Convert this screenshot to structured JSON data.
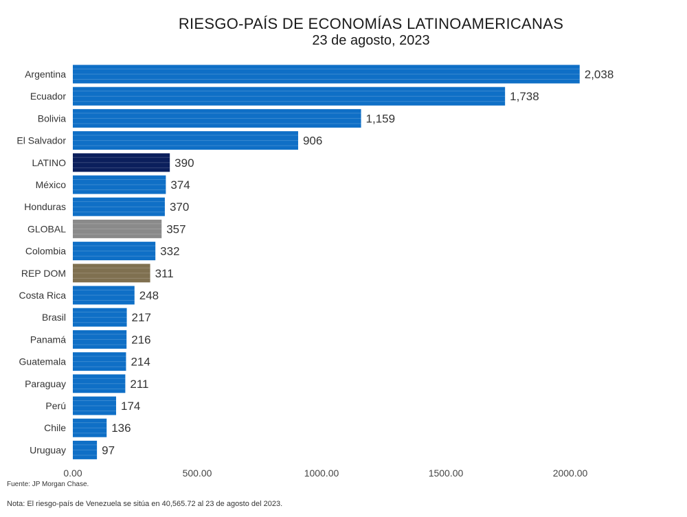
{
  "chart_data": {
    "type": "bar",
    "orientation": "horizontal",
    "title": "RIESGO-PAÍS DE ECONOMÍAS LATINOAMERICANAS",
    "subtitle": "23 de agosto, 2023",
    "categories": [
      "Argentina",
      "Ecuador",
      "Bolivia",
      "El Salvador",
      "LATINO",
      "México",
      "Honduras",
      "GLOBAL",
      "Colombia",
      "REP DOM",
      "Costa Rica",
      "Brasil",
      "Panamá",
      "Guatemala",
      "Paraguay",
      "Perú",
      "Chile",
      "Uruguay"
    ],
    "values": [
      2038,
      1738,
      1159,
      906,
      390,
      374,
      370,
      357,
      332,
      311,
      248,
      217,
      216,
      214,
      211,
      174,
      136,
      97
    ],
    "value_labels": [
      "2,038",
      "1,738",
      "1,159",
      "906",
      "390",
      "374",
      "370",
      "357",
      "332",
      "311",
      "248",
      "217",
      "216",
      "214",
      "211",
      "174",
      "136",
      "97"
    ],
    "colors": {
      "default": "#0f6fc6",
      "LATINO": "#0b1f5c",
      "GLOBAL": "#8a8a8a",
      "REP DOM": "#7f7050"
    },
    "xlim": [
      0,
      2000
    ],
    "xticks": [
      0,
      500,
      1000,
      1500,
      2000
    ],
    "xtick_labels": [
      "0.00",
      "500.00",
      "1000.00",
      "1500.00",
      "2000.00"
    ],
    "grid": false,
    "legend": "none"
  },
  "footer": {
    "source": "Fuente: JP Morgan Chase.",
    "note": "Nota: El riesgo-país de Venezuela se sitúa en 40,565.72 al 23 de agosto del 2023."
  }
}
